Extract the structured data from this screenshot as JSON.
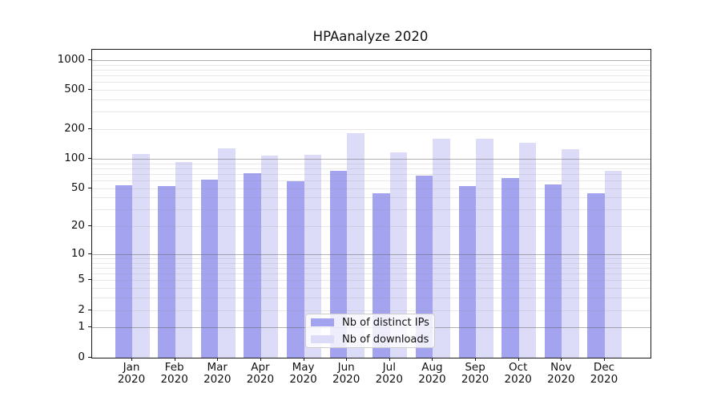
{
  "title": "HPAanalyze 2020",
  "chart_data": {
    "type": "bar",
    "title": "HPAanalyze 2020",
    "categories": [
      "Jan",
      "Feb",
      "Mar",
      "Apr",
      "May",
      "Jun",
      "Jul",
      "Aug",
      "Sep",
      "Oct",
      "Nov",
      "Dec"
    ],
    "x_sub_label": "2020",
    "series": [
      {
        "name": "Nb of distinct IPs",
        "color": "#a3a3f0",
        "values": [
          54,
          53,
          61,
          71,
          59,
          76,
          44,
          67,
          53,
          64,
          55,
          44
        ]
      },
      {
        "name": "Nb of downloads",
        "color": "#dcdcf8",
        "values": [
          111,
          93,
          128,
          107,
          110,
          183,
          116,
          160,
          161,
          146,
          126,
          76
        ]
      }
    ],
    "y_ticks": [
      0,
      1,
      2,
      5,
      10,
      20,
      50,
      100,
      200,
      500,
      1000
    ],
    "y_scale": "log10(1+value)",
    "ylim": [
      0,
      1230
    ],
    "grid": true,
    "minor_grid_values": [
      2,
      3,
      4,
      5,
      6,
      7,
      8,
      9,
      20,
      30,
      40,
      50,
      60,
      70,
      80,
      90,
      200,
      300,
      400,
      500,
      600,
      700,
      800,
      900
    ],
    "major_grid_values": [
      1,
      10,
      100,
      1000
    ],
    "legend_position": "lower center inside axes",
    "colors": {
      "major_gridline": "#aeaeae",
      "minor_gridline": "#e9e9e9",
      "axis": "#1a1a1a",
      "background": "#ffffff"
    }
  }
}
